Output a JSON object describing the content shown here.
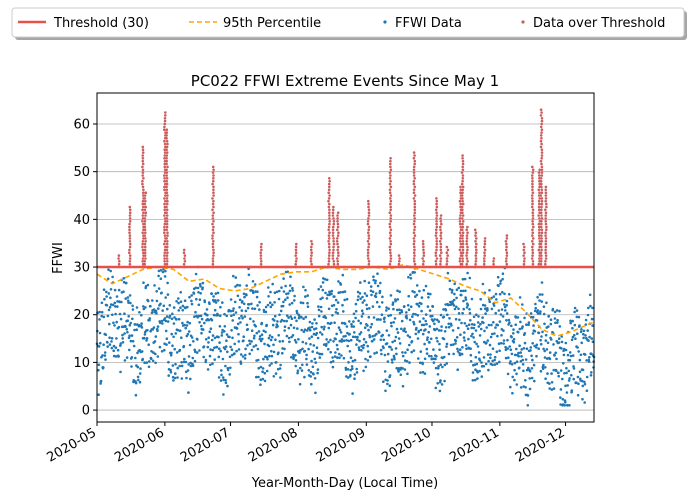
{
  "chart_data": {
    "type": "scatter",
    "title": "PC022 FFWI Extreme Events Since May 1",
    "xlabel": "Year-Month-Day (Local Time)",
    "ylabel": "FFWI",
    "x_ticks": [
      "2020-05",
      "2020-06",
      "2020-07",
      "2020-08",
      "2020-09",
      "2020-10",
      "2020-11",
      "2020-12"
    ],
    "x_range": [
      "2020-05-01",
      "2020-12-14"
    ],
    "y_ticks": [
      "0",
      "10",
      "20",
      "30",
      "40",
      "50",
      "60"
    ],
    "ylim": [
      -2.5,
      66.5
    ],
    "grid": "horizontal",
    "legend_position": "top",
    "legend": [
      {
        "label": "Threshold (30)",
        "color": "#e8504a",
        "kind": "line"
      },
      {
        "label": "95th Percentile",
        "color": "#ffa500",
        "kind": "dashed"
      },
      {
        "label": "FFWI Data",
        "color": "#1f77b4",
        "kind": "point"
      },
      {
        "label": "Data over Threshold",
        "color": "#cd5c5c",
        "kind": "point"
      }
    ],
    "threshold": 30,
    "series": [
      {
        "name": "95th Percentile",
        "x": [
          "2020-05-01",
          "2020-05-08",
          "2020-05-15",
          "2020-05-22",
          "2020-05-29",
          "2020-06-05",
          "2020-06-12",
          "2020-06-19",
          "2020-06-26",
          "2020-07-03",
          "2020-07-10",
          "2020-07-17",
          "2020-07-24",
          "2020-07-31",
          "2020-08-07",
          "2020-08-14",
          "2020-08-21",
          "2020-08-28",
          "2020-09-04",
          "2020-09-11",
          "2020-09-18",
          "2020-09-25",
          "2020-10-02",
          "2020-10-09",
          "2020-10-16",
          "2020-10-23",
          "2020-10-30",
          "2020-11-06",
          "2020-11-13",
          "2020-11-20",
          "2020-11-27",
          "2020-12-04",
          "2020-12-14"
        ],
        "values": [
          28.5,
          26.5,
          28,
          29.5,
          30,
          29.5,
          27,
          27.5,
          25.5,
          25,
          25.5,
          27,
          28.5,
          29,
          29,
          30,
          29.5,
          29.5,
          30,
          29.5,
          30.5,
          29.5,
          28.5,
          27.5,
          26,
          25,
          22.5,
          23.5,
          20.5,
          17,
          15.5,
          16.5,
          18.5
        ]
      },
      {
        "name": "Data over Threshold",
        "spikes": [
          {
            "x": "2020-05-11",
            "max": 32.5
          },
          {
            "x": "2020-05-16",
            "max": 43
          },
          {
            "x": "2020-05-22",
            "max": 55.5
          },
          {
            "x": "2020-05-23",
            "max": 46
          },
          {
            "x": "2020-06-01",
            "max": 63
          },
          {
            "x": "2020-06-02",
            "max": 59
          },
          {
            "x": "2020-06-10",
            "max": 34
          },
          {
            "x": "2020-06-23",
            "max": 51.5
          },
          {
            "x": "2020-07-15",
            "max": 35
          },
          {
            "x": "2020-07-31",
            "max": 35
          },
          {
            "x": "2020-08-07",
            "max": 36
          },
          {
            "x": "2020-08-15",
            "max": 49
          },
          {
            "x": "2020-08-17",
            "max": 43
          },
          {
            "x": "2020-08-19",
            "max": 42
          },
          {
            "x": "2020-09-02",
            "max": 44
          },
          {
            "x": "2020-09-12",
            "max": 53
          },
          {
            "x": "2020-09-16",
            "max": 33
          },
          {
            "x": "2020-09-23",
            "max": 54.5
          },
          {
            "x": "2020-09-27",
            "max": 36
          },
          {
            "x": "2020-10-03",
            "max": 44.5
          },
          {
            "x": "2020-10-05",
            "max": 41
          },
          {
            "x": "2020-10-08",
            "max": 34.5
          },
          {
            "x": "2020-10-14",
            "max": 47
          },
          {
            "x": "2020-10-15",
            "max": 54
          },
          {
            "x": "2020-10-17",
            "max": 38.5
          },
          {
            "x": "2020-10-21",
            "max": 38
          },
          {
            "x": "2020-10-25",
            "max": 36.5
          },
          {
            "x": "2020-10-29",
            "max": 32
          },
          {
            "x": "2020-11-04",
            "max": 37
          },
          {
            "x": "2020-11-12",
            "max": 35
          },
          {
            "x": "2020-11-16",
            "max": 51.5
          },
          {
            "x": "2020-11-19",
            "max": 51
          },
          {
            "x": "2020-11-20",
            "max": 63.5
          },
          {
            "x": "2020-11-22",
            "max": 47
          }
        ]
      },
      {
        "name": "FFWI Data",
        "x_start": "2020-05-01",
        "x_end": "2020-12-14",
        "note_range": [
          0,
          30
        ]
      }
    ]
  }
}
